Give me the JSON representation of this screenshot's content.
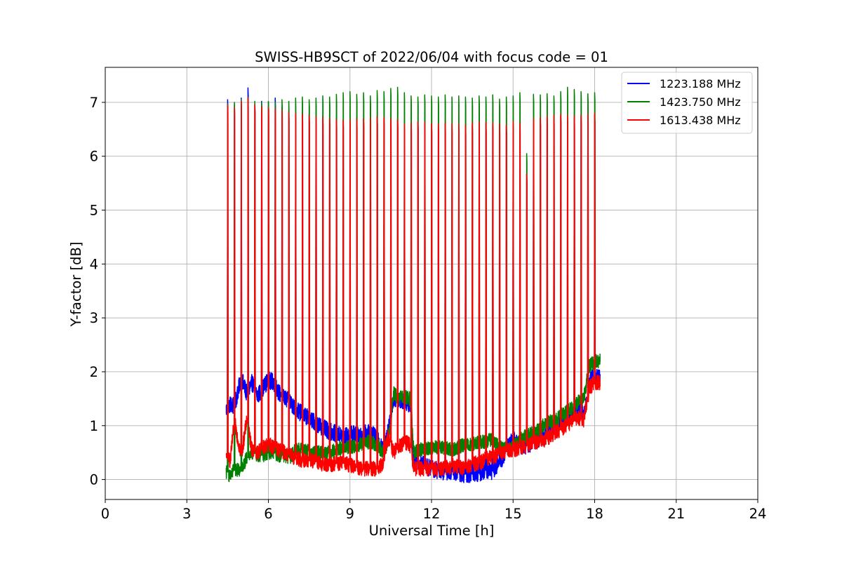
{
  "chart_data": {
    "type": "line",
    "title": "SWISS-HB9SCT of 2022/06/04 with focus code = 01",
    "xlabel": "Universal Time [h]",
    "ylabel": "Y-factor [dB]",
    "xlim": [
      0,
      24
    ],
    "ylim": [
      -0.37,
      7.65
    ],
    "xticks": [
      0,
      3,
      6,
      9,
      12,
      15,
      18,
      21,
      24
    ],
    "yticks": [
      0,
      1,
      2,
      3,
      4,
      5,
      6,
      7
    ],
    "xtick_labels": [
      "0",
      "3",
      "6",
      "9",
      "12",
      "15",
      "18",
      "21",
      "24"
    ],
    "ytick_labels": [
      "0",
      "1",
      "2",
      "3",
      "4",
      "5",
      "6",
      "7"
    ],
    "grid": true,
    "legend_position": "top-right",
    "calibration_peaks": {
      "times": [
        4.5,
        4.75,
        5.0,
        5.25,
        5.5,
        5.75,
        6.0,
        6.25,
        6.5,
        6.75,
        7.0,
        7.25,
        7.5,
        7.75,
        8.0,
        8.25,
        8.5,
        8.75,
        9.0,
        9.25,
        9.5,
        9.75,
        10.0,
        10.25,
        10.5,
        10.75,
        11.0,
        11.25,
        11.5,
        11.75,
        12.0,
        12.25,
        12.5,
        12.75,
        13.0,
        13.25,
        13.5,
        13.75,
        14.0,
        14.25,
        14.5,
        14.75,
        15.0,
        15.25,
        15.5,
        15.75,
        16.0,
        16.25,
        16.5,
        16.75,
        17.0,
        17.25,
        17.5,
        17.75,
        18.0
      ],
      "red_peak": [
        6.95,
        6.9,
        7.02,
        7.08,
        6.95,
        6.92,
        6.9,
        6.88,
        6.85,
        6.82,
        6.8,
        6.78,
        6.76,
        6.74,
        6.72,
        6.7,
        6.68,
        6.67,
        6.68,
        6.7,
        6.69,
        6.71,
        6.73,
        6.72,
        6.7,
        6.68,
        6.6,
        6.62,
        6.64,
        6.63,
        6.61,
        6.6,
        6.62,
        6.61,
        6.6,
        6.58,
        6.62,
        6.64,
        6.63,
        6.62,
        6.6,
        6.58,
        6.64,
        6.62,
        5.67,
        6.7,
        6.72,
        6.74,
        6.76,
        6.78,
        6.76,
        6.75,
        6.77,
        6.78,
        6.8
      ],
      "green_peak": [
        6.98,
        7.0,
        7.05,
        7.1,
        7.02,
        7.0,
        7.02,
        7.0,
        7.05,
        7.02,
        7.08,
        7.1,
        7.05,
        7.08,
        7.12,
        7.1,
        7.15,
        7.18,
        7.2,
        7.15,
        7.18,
        7.12,
        7.22,
        7.2,
        7.26,
        7.28,
        7.18,
        7.12,
        7.1,
        7.14,
        7.12,
        7.1,
        7.14,
        7.1,
        7.12,
        7.1,
        7.08,
        7.12,
        7.1,
        7.14,
        7.06,
        7.1,
        7.12,
        7.18,
        6.05,
        7.15,
        7.14,
        7.16,
        7.12,
        7.2,
        7.28,
        7.24,
        7.2,
        7.16,
        7.18
      ],
      "blue_peak": [
        7.05,
        6.95,
        7.08,
        7.27,
        6.95,
        7.02,
        7.0,
        7.08,
        6.9,
        6.85,
        6.82,
        6.8,
        6.78,
        6.76,
        6.74,
        6.72,
        6.7,
        6.68,
        6.7,
        6.72,
        6.7,
        6.72,
        6.74,
        6.72,
        6.7,
        6.68,
        6.6,
        6.62,
        6.64,
        6.62,
        6.6,
        6.58,
        6.6,
        6.58,
        6.58,
        6.56,
        6.58,
        6.6,
        6.6,
        6.58,
        6.58,
        6.56,
        6.6,
        6.58,
        5.67,
        6.68,
        6.7,
        6.72,
        6.74,
        6.76,
        6.74,
        6.72,
        6.74,
        6.76,
        6.78
      ]
    },
    "series": [
      {
        "name": "1223.188 MHz",
        "color": "#0000ff",
        "x": [
          4.45,
          4.6,
          4.75,
          5.0,
          5.2,
          5.4,
          5.6,
          5.8,
          6.0,
          6.2,
          6.4,
          6.6,
          6.8,
          7.0,
          7.3,
          7.6,
          7.9,
          8.2,
          8.5,
          8.8,
          9.1,
          9.4,
          9.7,
          10.0,
          10.2,
          10.4,
          10.6,
          10.8,
          11.0,
          11.2,
          11.35,
          11.6,
          12.0,
          12.4,
          12.8,
          13.2,
          13.5,
          13.8,
          14.0,
          14.2,
          14.4,
          14.6,
          14.8,
          15.0,
          15.3,
          15.6,
          15.9,
          16.2,
          16.5,
          16.8,
          17.1,
          17.4,
          17.6,
          17.8,
          18.0,
          18.2
        ],
        "y": [
          1.3,
          1.4,
          1.35,
          1.9,
          1.6,
          1.8,
          1.55,
          1.7,
          1.85,
          1.8,
          1.6,
          1.5,
          1.45,
          1.3,
          1.2,
          1.1,
          1.0,
          0.9,
          0.85,
          0.8,
          0.85,
          0.8,
          0.9,
          0.75,
          0.55,
          0.9,
          1.5,
          1.5,
          1.45,
          1.4,
          0.35,
          0.3,
          0.2,
          0.15,
          0.15,
          0.1,
          0.1,
          0.12,
          0.18,
          0.15,
          0.25,
          0.4,
          0.6,
          0.75,
          0.6,
          0.65,
          0.75,
          0.8,
          0.95,
          1.1,
          1.2,
          1.3,
          1.2,
          1.8,
          1.95,
          1.9
        ]
      },
      {
        "name": "1423.750 MHz",
        "color": "#008000",
        "x": [
          4.45,
          4.6,
          4.75,
          5.0,
          5.2,
          5.4,
          5.6,
          5.8,
          6.0,
          6.2,
          6.4,
          6.6,
          6.8,
          7.0,
          7.3,
          7.6,
          7.9,
          8.2,
          8.5,
          8.8,
          9.1,
          9.4,
          9.7,
          10.0,
          10.2,
          10.4,
          10.6,
          10.8,
          11.0,
          11.2,
          11.35,
          11.6,
          12.0,
          12.4,
          12.8,
          13.2,
          13.5,
          13.8,
          14.0,
          14.2,
          14.4,
          14.6,
          14.8,
          15.0,
          15.3,
          15.6,
          15.9,
          16.2,
          16.5,
          16.8,
          17.1,
          17.4,
          17.6,
          17.8,
          18.0,
          18.2
        ],
        "y": [
          0.15,
          0.05,
          0.2,
          0.15,
          0.4,
          0.5,
          0.45,
          0.45,
          0.5,
          0.5,
          0.45,
          0.45,
          0.4,
          0.55,
          0.55,
          0.5,
          0.5,
          0.5,
          0.55,
          0.6,
          0.6,
          0.65,
          0.7,
          0.65,
          0.5,
          0.7,
          1.6,
          1.5,
          1.55,
          1.5,
          0.5,
          0.55,
          0.6,
          0.6,
          0.55,
          0.65,
          0.65,
          0.7,
          0.7,
          0.75,
          0.65,
          0.6,
          0.55,
          0.6,
          0.75,
          0.85,
          0.9,
          1.05,
          1.1,
          1.2,
          1.3,
          1.45,
          1.5,
          2.1,
          2.2,
          2.2
        ]
      },
      {
        "name": "1613.438 MHz",
        "color": "#ff0000",
        "x": [
          4.45,
          4.6,
          4.75,
          5.0,
          5.2,
          5.4,
          5.6,
          5.8,
          6.0,
          6.2,
          6.4,
          6.6,
          6.8,
          7.0,
          7.3,
          7.6,
          7.9,
          8.2,
          8.5,
          8.8,
          9.1,
          9.4,
          9.7,
          10.0,
          10.2,
          10.4,
          10.6,
          10.8,
          11.0,
          11.2,
          11.35,
          11.6,
          12.0,
          12.4,
          12.8,
          13.2,
          13.5,
          13.8,
          14.0,
          14.2,
          14.4,
          14.6,
          14.8,
          15.0,
          15.3,
          15.6,
          15.9,
          16.2,
          16.5,
          16.8,
          17.1,
          17.4,
          17.6,
          17.8,
          18.0,
          18.2
        ],
        "y": [
          0.4,
          0.35,
          1.1,
          0.4,
          1.1,
          0.55,
          0.5,
          0.6,
          0.65,
          0.6,
          0.55,
          0.5,
          0.45,
          0.4,
          0.35,
          0.35,
          0.3,
          0.25,
          0.3,
          0.3,
          0.25,
          0.2,
          0.2,
          0.2,
          0.3,
          0.8,
          0.5,
          0.6,
          0.7,
          0.65,
          0.2,
          0.2,
          0.2,
          0.2,
          0.25,
          0.2,
          0.3,
          0.3,
          0.4,
          0.4,
          0.45,
          0.5,
          0.55,
          0.55,
          0.6,
          0.65,
          0.7,
          0.75,
          0.85,
          0.95,
          1.05,
          1.15,
          1.1,
          1.7,
          1.8,
          1.8
        ]
      }
    ]
  }
}
